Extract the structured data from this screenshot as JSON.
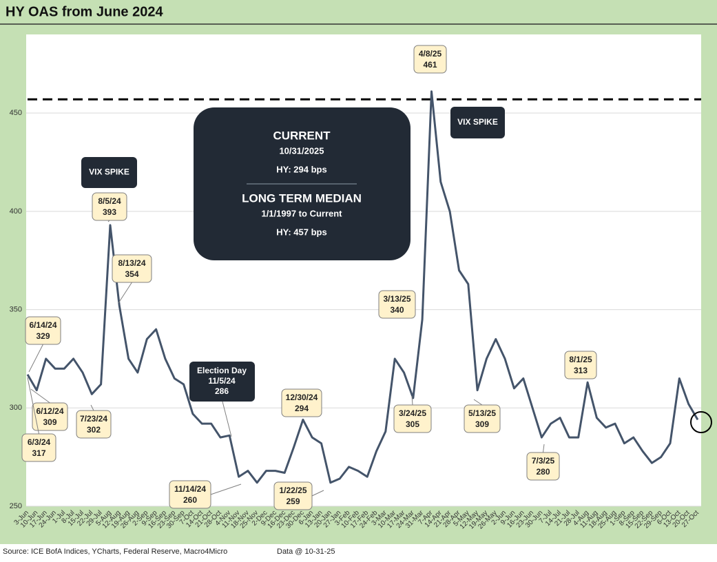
{
  "chart_data": {
    "type": "line",
    "title": "HY OAS from June 2024",
    "categories": [
      "3-Jun",
      "10-Jun",
      "17-Jun",
      "24-Jun",
      "1-Jul",
      "8-Jul",
      "15-Jul",
      "22-Jul",
      "29-Jul",
      "5-Aug",
      "12-Aug",
      "19-Aug",
      "26-Aug",
      "2-Sep",
      "9-Sep",
      "16-Sep",
      "23-Sep",
      "30-Sep",
      "7-Oct",
      "14-Oct",
      "21-Oct",
      "28-Oct",
      "4-Nov",
      "11-Nov",
      "18-Nov",
      "25-Nov",
      "2-Dec",
      "9-Dec",
      "16-Dec",
      "23-Dec",
      "30-Dec",
      "6-Jan",
      "13-Jan",
      "20-Jan",
      "27-Jan",
      "3-Feb",
      "10-Feb",
      "17-Feb",
      "24-Feb",
      "3-Mar",
      "10-Mar",
      "17-Mar",
      "24-Mar",
      "31-Mar",
      "7-Apr",
      "14-Apr",
      "21-Apr",
      "28-Apr",
      "5-May",
      "12-May",
      "19-May",
      "26-May",
      "2-Jun",
      "9-Jun",
      "16-Jun",
      "23-Jun",
      "30-Jun",
      "7-Jul",
      "14-Jul",
      "21-Jul",
      "28-Jul",
      "4-Aug",
      "11-Aug",
      "18-Aug",
      "25-Aug",
      "1-Sep",
      "8-Sep",
      "15-Sep",
      "22-Sep",
      "29-Sep",
      "6-Oct",
      "13-Oct",
      "20-Oct",
      "27-Oct"
    ],
    "values": [
      317,
      309,
      325,
      320,
      320,
      325,
      318,
      307,
      312,
      393,
      352,
      325,
      318,
      335,
      340,
      325,
      315,
      312,
      297,
      292,
      292,
      285,
      286,
      265,
      268,
      262,
      268,
      268,
      267,
      280,
      294,
      285,
      282,
      262,
      264,
      270,
      268,
      265,
      278,
      288,
      325,
      318,
      305,
      345,
      461,
      415,
      400,
      370,
      363,
      309,
      325,
      335,
      325,
      310,
      315,
      300,
      285,
      292,
      295,
      285,
      285,
      313,
      295,
      290,
      292,
      282,
      285,
      278,
      272,
      275,
      282,
      315,
      302,
      294
    ],
    "color": "#44546a",
    "ylim": [
      250,
      490
    ],
    "yticks": [
      250,
      300,
      350,
      400,
      450
    ],
    "grid": true,
    "reference_line": {
      "value": 457
    },
    "annotations": [
      {
        "date": "6/14/24",
        "value": 329
      },
      {
        "date": "6/12/24",
        "value": 309
      },
      {
        "date": "6/3/24",
        "value": 317
      },
      {
        "date": "7/23/24",
        "value": 302
      },
      {
        "date": "8/5/24",
        "value": 393
      },
      {
        "date": "8/13/24",
        "value": 354
      },
      {
        "date": "11/14/24",
        "value": 260
      },
      {
        "date": "12/30/24",
        "value": 294
      },
      {
        "date": "1/22/25",
        "value": 259
      },
      {
        "date": "3/13/25",
        "value": 340
      },
      {
        "date": "3/24/25",
        "value": 305
      },
      {
        "date": "4/8/25",
        "value": 461
      },
      {
        "date": "5/13/25",
        "value": 309
      },
      {
        "date": "7/3/25",
        "value": 280
      },
      {
        "date": "8/1/25",
        "value": 313
      }
    ],
    "event_labels": [
      "VIX SPIKE",
      "VIX SPIKE"
    ],
    "election": {
      "label": "Election Day",
      "date": "11/5/24",
      "value": 286
    },
    "current_box": {
      "heading": "CURRENT",
      "date": "10/31/2025",
      "hy": "HY:   294 bps",
      "median_heading": "LONG TERM MEDIAN",
      "median_range": "1/1/1997 to Current",
      "median_hy": "HY: 457 bps"
    },
    "source": "Source: ICE BofA Indices, YCharts, Federal Reserve, Macro4Micro",
    "data_note": "Data @ 10-31-25"
  }
}
